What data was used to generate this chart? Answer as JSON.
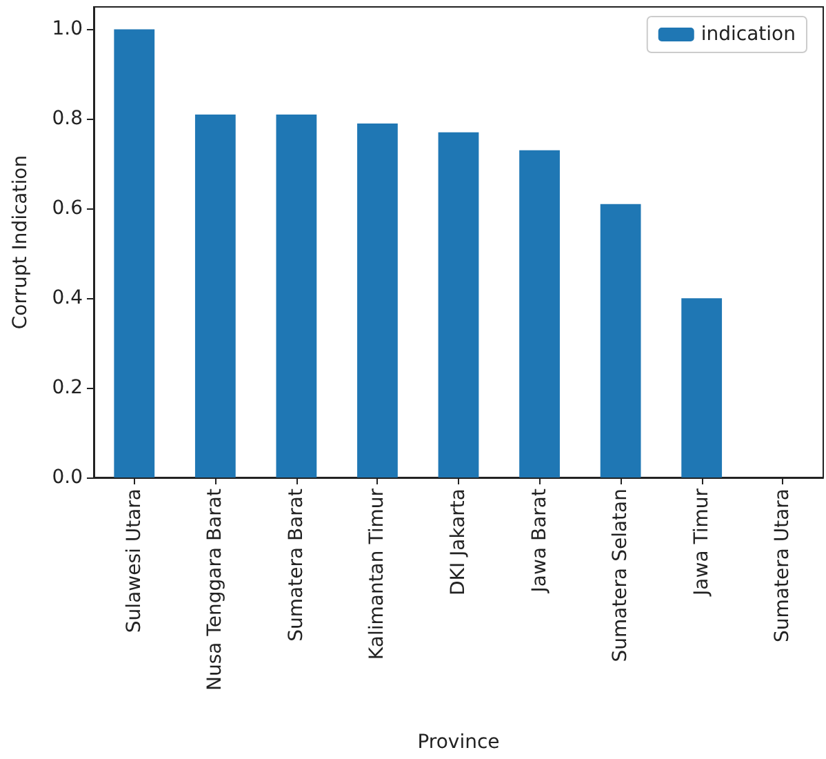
{
  "chart_data": {
    "type": "bar",
    "xlabel": "Province",
    "ylabel": "Corrupt Indication",
    "categories": [
      "Sulawesi Utara",
      "Nusa Tenggara Barat",
      "Sumatera Barat",
      "Kalimantan Timur",
      "DKI Jakarta",
      "Jawa Barat",
      "Sumatera Selatan",
      "Jawa Timur",
      "Sumatera Utara"
    ],
    "series": [
      {
        "name": "indication",
        "color": "#1f77b4",
        "values": [
          1.0,
          0.81,
          0.81,
          0.79,
          0.77,
          0.73,
          0.61,
          0.4,
          0
        ]
      }
    ],
    "ylim": [
      0,
      1.05
    ],
    "yticks": [
      {
        "value": 0,
        "label": "0.0"
      },
      0.2,
      0.4,
      0.6,
      0.8,
      {
        "value": 1,
        "label": "1.0"
      }
    ],
    "grid": false,
    "legend": "top right"
  }
}
